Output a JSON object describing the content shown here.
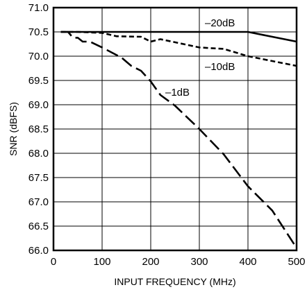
{
  "chart_data": {
    "type": "line",
    "title": "",
    "xlabel": "INPUT FREQUENCY (MHz)",
    "ylabel": "SNR (dBFS)",
    "xlim": [
      0,
      500
    ],
    "ylim": [
      66.0,
      71.0
    ],
    "x_ticks": [
      "0",
      "100",
      "200",
      "300",
      "400",
      "500"
    ],
    "y_ticks": [
      "66.0",
      "66.5",
      "67.0",
      "67.5",
      "68.0",
      "68.5",
      "69.0",
      "69.5",
      "70.0",
      "70.5",
      "71.0"
    ],
    "grid": true,
    "series": [
      {
        "name": "–20dB",
        "style": "solid",
        "points": [
          [
            15,
            70.5
          ],
          [
            100,
            70.5
          ],
          [
            200,
            70.5
          ],
          [
            300,
            70.5
          ],
          [
            400,
            70.5
          ],
          [
            500,
            70.3
          ]
        ]
      },
      {
        "name": "–10dB",
        "style": "short-dash",
        "points": [
          [
            15,
            70.5
          ],
          [
            50,
            70.5
          ],
          [
            100,
            70.48
          ],
          [
            130,
            70.41
          ],
          [
            180,
            70.4
          ],
          [
            200,
            70.3
          ],
          [
            220,
            70.35
          ],
          [
            300,
            70.18
          ],
          [
            350,
            70.15
          ],
          [
            400,
            70.0
          ],
          [
            450,
            69.9
          ],
          [
            500,
            69.8
          ]
        ]
      },
      {
        "name": "–1dB",
        "style": "long-dash",
        "points": [
          [
            15,
            70.5
          ],
          [
            30,
            70.5
          ],
          [
            40,
            70.38
          ],
          [
            50,
            70.38
          ],
          [
            60,
            70.3
          ],
          [
            75,
            70.3
          ],
          [
            100,
            70.18
          ],
          [
            140,
            69.97
          ],
          [
            160,
            69.8
          ],
          [
            180,
            69.7
          ],
          [
            200,
            69.48
          ],
          [
            220,
            69.2
          ],
          [
            250,
            68.98
          ],
          [
            300,
            68.5
          ],
          [
            350,
            67.98
          ],
          [
            400,
            67.32
          ],
          [
            450,
            66.82
          ],
          [
            500,
            66.05
          ]
        ]
      }
    ]
  }
}
